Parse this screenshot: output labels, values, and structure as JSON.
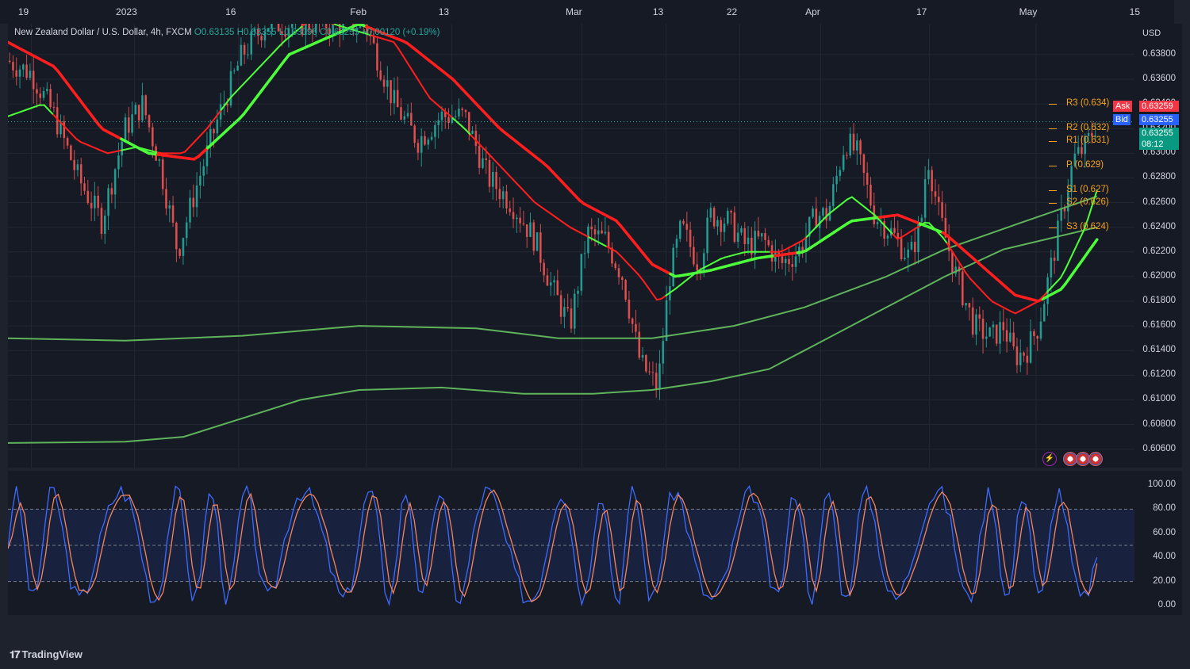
{
  "legend": {
    "symbol": "New Zealand Dollar / U.S. Dollar, 4h, FXCM",
    "open_label": "O",
    "open": "0.63135",
    "high_label": "H",
    "high": "0.63355",
    "low_label": "L",
    "low": "0.63096",
    "close_label": "C",
    "close": "0.63255",
    "change": "+0.00120 (+0.19%)"
  },
  "currency": "USD",
  "quotes": {
    "ask_label": "Ask",
    "ask": "0.63259",
    "bid_label": "Bid",
    "bid": "0.63255",
    "last": "0.63255",
    "countdown": "08:12"
  },
  "pivots": [
    {
      "label": "R3 (0.634)",
      "value": 0.634
    },
    {
      "label": "R2 (0.632)",
      "value": 0.632
    },
    {
      "label": "R1 (0.631)",
      "value": 0.631
    },
    {
      "label": "P (0.629)",
      "value": 0.629
    },
    {
      "label": "S1 (0.627)",
      "value": 0.627
    },
    {
      "label": "S2 (0.626)",
      "value": 0.626
    },
    {
      "label": "S3 (0.624)",
      "value": 0.624
    }
  ],
  "brand": "TradingView",
  "colors": {
    "bull": "#26a69a",
    "bear": "#ef5350",
    "ribbon_green": "#4cff3a",
    "ribbon_red": "#ff1e1e",
    "long_ma": "#5fb35a",
    "stoch_k": "#3d6bff",
    "stoch_d": "#f4845f",
    "pivot": "#f7a21b",
    "ask_bg": "#f23645",
    "bid_bg": "#2962ff",
    "last_bg": "#089981"
  },
  "icons": [
    "lightning-icon",
    "us-flag-icon"
  ],
  "chart_data": [
    {
      "type": "candlestick",
      "title": "New Zealand Dollar / U.S. Dollar, 4h, FXCM",
      "ylabel": "USD",
      "ylim": [
        0.6045,
        0.6405
      ],
      "yticks": [
        "0.63800",
        "0.63600",
        "0.63400",
        "0.63200",
        "0.63000",
        "0.62800",
        "0.62600",
        "0.62400",
        "0.62200",
        "0.62000",
        "0.61800",
        "0.61600",
        "0.61400",
        "0.61200",
        "0.61000",
        "0.60800",
        "0.60600"
      ],
      "x_ticks": [
        {
          "label": "19",
          "t": 0.02
        },
        {
          "label": "2023",
          "t": 0.108
        },
        {
          "label": "16",
          "t": 0.197
        },
        {
          "label": "Feb",
          "t": 0.306
        },
        {
          "label": "13",
          "t": 0.379
        },
        {
          "label": "Mar",
          "t": 0.49
        },
        {
          "label": "13",
          "t": 0.562
        },
        {
          "label": "22",
          "t": 0.625
        },
        {
          "label": "Apr",
          "t": 0.694
        },
        {
          "label": "17",
          "t": 0.787
        },
        {
          "label": "May",
          "t": 0.878
        },
        {
          "label": "15",
          "t": 0.969
        }
      ],
      "price_path": [
        [
          0.0,
          0.6375
        ],
        [
          0.02,
          0.6365
        ],
        [
          0.04,
          0.633
        ],
        [
          0.06,
          0.628
        ],
        [
          0.08,
          0.6245
        ],
        [
          0.1,
          0.632
        ],
        [
          0.115,
          0.634
        ],
        [
          0.13,
          0.629
        ],
        [
          0.145,
          0.622
        ],
        [
          0.16,
          0.627
        ],
        [
          0.18,
          0.633
        ],
        [
          0.2,
          0.638
        ],
        [
          0.22,
          0.6405
        ],
        [
          0.24,
          0.6405
        ],
        [
          0.305,
          0.6405
        ],
        [
          0.33,
          0.634
        ],
        [
          0.35,
          0.631
        ],
        [
          0.37,
          0.633
        ],
        [
          0.39,
          0.633
        ],
        [
          0.41,
          0.628
        ],
        [
          0.43,
          0.626
        ],
        [
          0.45,
          0.623
        ],
        [
          0.465,
          0.619
        ],
        [
          0.48,
          0.616
        ],
        [
          0.495,
          0.6235
        ],
        [
          0.51,
          0.623
        ],
        [
          0.525,
          0.62
        ],
        [
          0.54,
          0.613
        ],
        [
          0.555,
          0.611
        ],
        [
          0.565,
          0.62
        ],
        [
          0.575,
          0.624
        ],
        [
          0.59,
          0.621
        ],
        [
          0.6,
          0.625
        ],
        [
          0.615,
          0.6245
        ],
        [
          0.63,
          0.6225
        ],
        [
          0.645,
          0.623
        ],
        [
          0.66,
          0.621
        ],
        [
          0.675,
          0.622
        ],
        [
          0.69,
          0.625
        ],
        [
          0.7,
          0.625
        ],
        [
          0.715,
          0.631
        ],
        [
          0.725,
          0.63
        ],
        [
          0.74,
          0.625
        ],
        [
          0.755,
          0.6235
        ],
        [
          0.77,
          0.6215
        ],
        [
          0.78,
          0.6245
        ],
        [
          0.785,
          0.63
        ],
        [
          0.795,
          0.625
        ],
        [
          0.81,
          0.62
        ],
        [
          0.825,
          0.616
        ],
        [
          0.84,
          0.615
        ],
        [
          0.85,
          0.616
        ],
        [
          0.86,
          0.6135
        ],
        [
          0.87,
          0.614
        ],
        [
          0.88,
          0.616
        ],
        [
          0.89,
          0.6205
        ],
        [
          0.9,
          0.625
        ],
        [
          0.91,
          0.6295
        ],
        [
          0.92,
          0.6305
        ],
        [
          0.93,
          0.63255
        ]
      ],
      "long_ma_1": [
        [
          0.0,
          0.615
        ],
        [
          0.1,
          0.6148
        ],
        [
          0.2,
          0.6152
        ],
        [
          0.3,
          0.616
        ],
        [
          0.4,
          0.6158
        ],
        [
          0.47,
          0.615
        ],
        [
          0.55,
          0.615
        ],
        [
          0.62,
          0.616
        ],
        [
          0.68,
          0.6175
        ],
        [
          0.75,
          0.62
        ],
        [
          0.8,
          0.6222
        ],
        [
          0.86,
          0.6242
        ],
        [
          0.93,
          0.6265
        ]
      ],
      "long_ma_2": [
        [
          0.0,
          0.6065
        ],
        [
          0.1,
          0.6066
        ],
        [
          0.15,
          0.607
        ],
        [
          0.2,
          0.6085
        ],
        [
          0.25,
          0.61
        ],
        [
          0.3,
          0.6108
        ],
        [
          0.37,
          0.611
        ],
        [
          0.44,
          0.6105
        ],
        [
          0.5,
          0.6105
        ],
        [
          0.55,
          0.6108
        ],
        [
          0.6,
          0.6115
        ],
        [
          0.65,
          0.6125
        ],
        [
          0.7,
          0.615
        ],
        [
          0.75,
          0.6175
        ],
        [
          0.8,
          0.62
        ],
        [
          0.85,
          0.6222
        ],
        [
          0.93,
          0.624
        ]
      ],
      "ribbon_fast": [
        [
          0.0,
          0.633
        ],
        [
          0.03,
          0.634
        ],
        [
          0.06,
          0.631
        ],
        [
          0.085,
          0.63
        ],
        [
          0.11,
          0.6305
        ],
        [
          0.13,
          0.63
        ],
        [
          0.15,
          0.63
        ],
        [
          0.17,
          0.632
        ],
        [
          0.19,
          0.6345
        ],
        [
          0.21,
          0.6365
        ],
        [
          0.235,
          0.639
        ],
        [
          0.26,
          0.641
        ],
        [
          0.33,
          0.639
        ],
        [
          0.36,
          0.6345
        ],
        [
          0.39,
          0.632
        ],
        [
          0.42,
          0.629
        ],
        [
          0.45,
          0.626
        ],
        [
          0.48,
          0.624
        ],
        [
          0.5,
          0.623
        ],
        [
          0.52,
          0.622
        ],
        [
          0.54,
          0.62
        ],
        [
          0.555,
          0.618
        ],
        [
          0.57,
          0.619
        ],
        [
          0.59,
          0.6205
        ],
        [
          0.61,
          0.6215
        ],
        [
          0.63,
          0.622
        ],
        [
          0.66,
          0.622
        ],
        [
          0.68,
          0.623
        ],
        [
          0.7,
          0.625
        ],
        [
          0.72,
          0.6265
        ],
        [
          0.74,
          0.625
        ],
        [
          0.76,
          0.623
        ],
        [
          0.785,
          0.6245
        ],
        [
          0.8,
          0.623
        ],
        [
          0.82,
          0.62
        ],
        [
          0.84,
          0.618
        ],
        [
          0.86,
          0.617
        ],
        [
          0.88,
          0.618
        ],
        [
          0.9,
          0.62
        ],
        [
          0.92,
          0.624
        ],
        [
          0.93,
          0.627
        ]
      ],
      "ribbon_slow": [
        [
          0.0,
          0.639
        ],
        [
          0.04,
          0.637
        ],
        [
          0.08,
          0.632
        ],
        [
          0.12,
          0.63
        ],
        [
          0.16,
          0.6295
        ],
        [
          0.2,
          0.633
        ],
        [
          0.24,
          0.638
        ],
        [
          0.3,
          0.6405
        ],
        [
          0.34,
          0.639
        ],
        [
          0.38,
          0.636
        ],
        [
          0.42,
          0.632
        ],
        [
          0.46,
          0.629
        ],
        [
          0.49,
          0.626
        ],
        [
          0.52,
          0.6245
        ],
        [
          0.55,
          0.621
        ],
        [
          0.57,
          0.62
        ],
        [
          0.6,
          0.6205
        ],
        [
          0.64,
          0.6215
        ],
        [
          0.68,
          0.622
        ],
        [
          0.72,
          0.6245
        ],
        [
          0.76,
          0.625
        ],
        [
          0.8,
          0.6235
        ],
        [
          0.83,
          0.621
        ],
        [
          0.86,
          0.6185
        ],
        [
          0.88,
          0.618
        ],
        [
          0.9,
          0.619
        ],
        [
          0.93,
          0.623
        ]
      ],
      "stoch_levels": [
        80,
        50,
        20
      ],
      "stoch_ylim": [
        0,
        100
      ],
      "stoch_yticks": [
        "100.00",
        "80.00",
        "60.00",
        "40.00",
        "20.00",
        "0.00"
      ],
      "stoch_k_last": 40,
      "stoch_d_last": 35
    }
  ]
}
